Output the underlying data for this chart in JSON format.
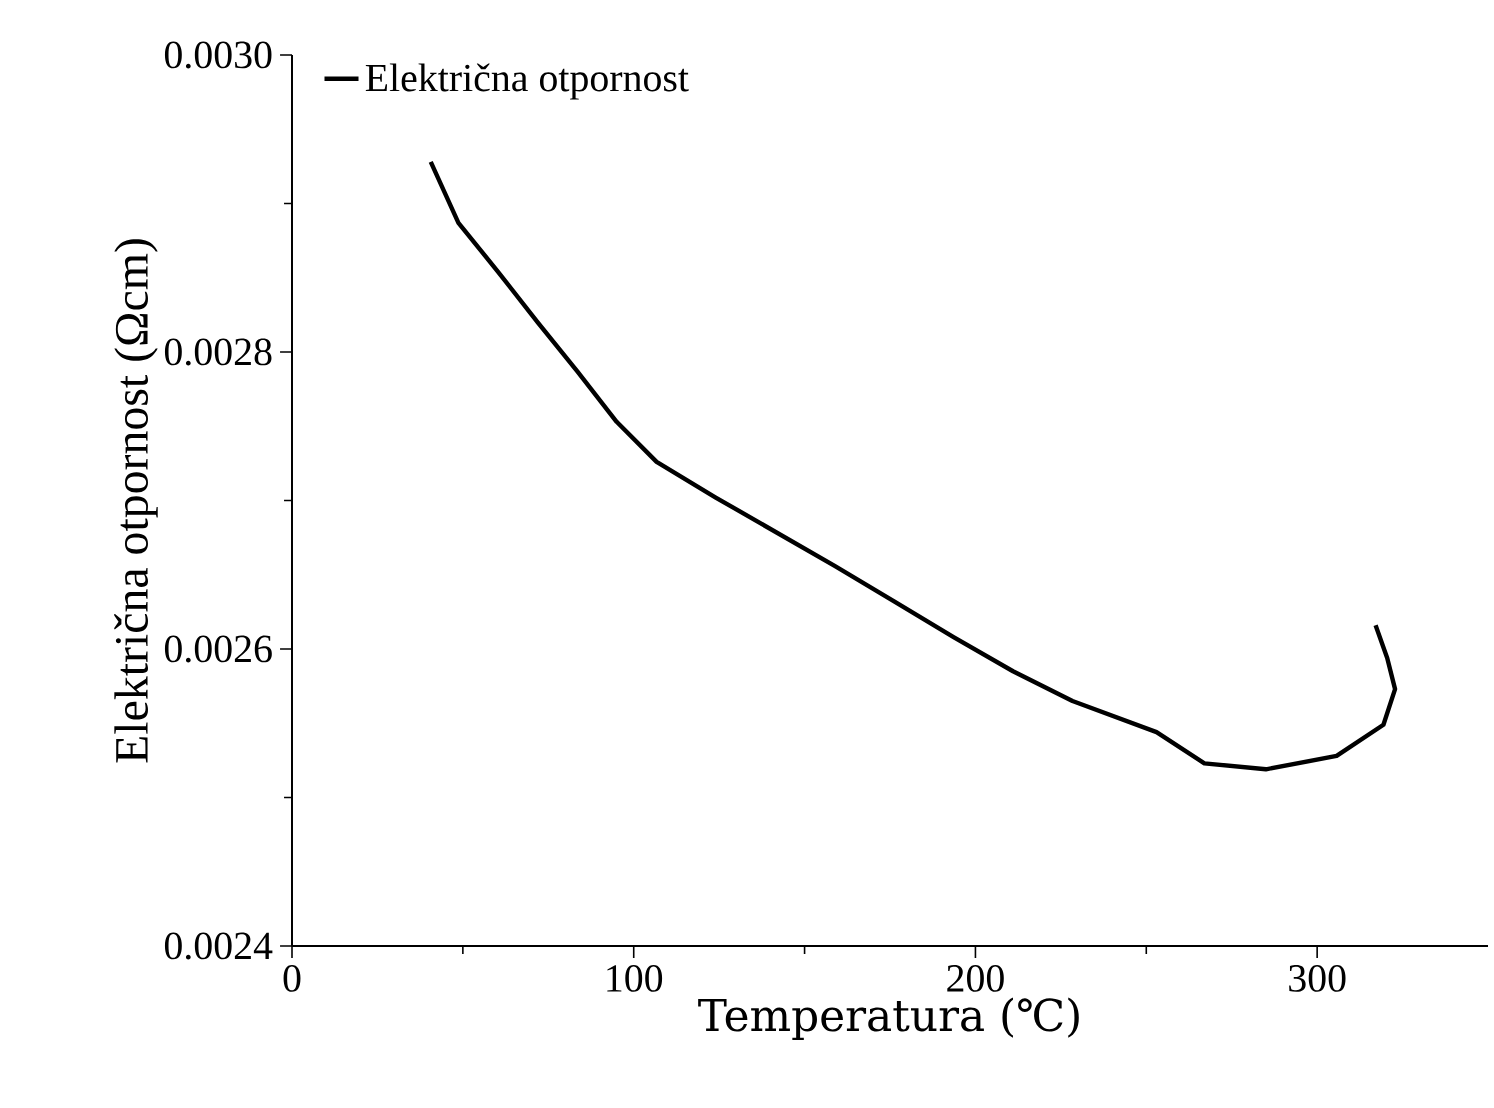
{
  "chart_data": {
    "type": "line",
    "xlabel": "Temperatura (℃)",
    "ylabel": "Električna otpornost (Ωcm)",
    "series": [
      {
        "name": "Električna otpornost",
        "color": "#000000",
        "x": [
          40.6,
          48.7,
          60.3,
          71.9,
          83.5,
          95,
          106.7,
          124,
          141.4,
          158.8,
          176.2,
          193.6,
          211,
          228.4,
          253,
          267,
          285,
          305.7,
          319.4,
          322.8,
          320.5,
          317.1
        ],
        "values": [
          0.002928,
          0.002887,
          0.002854,
          0.00282,
          0.002787,
          0.002753,
          0.002726,
          0.002702,
          0.002679,
          0.002656,
          0.002632,
          0.002608,
          0.002585,
          0.002565,
          0.002544,
          0.002523,
          0.002519,
          0.002528,
          0.002549,
          0.002573,
          0.002594,
          0.002616
        ]
      }
    ],
    "xlim": [
      0,
      350
    ],
    "ylim": [
      0.0024,
      0.003
    ],
    "xticks": [
      0,
      {
        "value": 50,
        "label": null
      },
      100,
      {
        "value": 150,
        "label": null
      },
      200,
      {
        "value": 250,
        "label": null
      },
      300
    ],
    "yticks": [
      0.0024,
      {
        "value": 0.0025,
        "label": null
      },
      0.0026,
      {
        "value": 0.0027,
        "label": null
      },
      0.0028,
      {
        "value": 0.0029,
        "label": null
      },
      {
        "value": 0.003,
        "label": "0.0030"
      }
    ],
    "legend": "top left",
    "grid": false,
    "line_style": "solid",
    "marker": "none"
  }
}
